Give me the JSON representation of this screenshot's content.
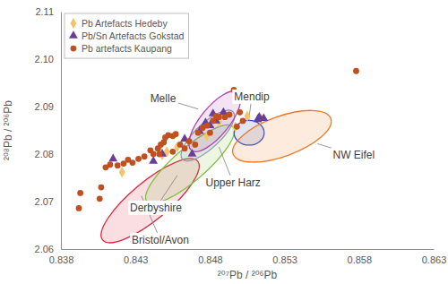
{
  "chart_data": {
    "type": "scatter",
    "x_label": "²⁰⁷Pb / ²⁰⁶Pb",
    "y_label": "²⁰⁸Pb / ²⁰⁶Pb",
    "xlim": [
      0.838,
      0.863
    ],
    "xticks": [
      0.838,
      0.843,
      0.848,
      0.853,
      0.858,
      0.863
    ],
    "ylim": [
      2.06,
      2.11
    ],
    "yticks": [
      2.06,
      2.07,
      2.08,
      2.09,
      {
        "value": 2.1,
        "label": "2.10"
      },
      2.11
    ],
    "grid": false,
    "legend": "upper left",
    "regions": [
      {
        "name": "Bristol/Avon",
        "color": "#e0233a",
        "x": [
          0.8408,
          0.84717
        ],
        "y": [
          2.0619,
          2.0785
        ],
        "half_width": 0.004,
        "label_x": 0.84467,
        "label_y": 2.0619,
        "arrow_to": [
          0.8434,
          2.0712
        ]
      },
      {
        "name": "Derbyshire",
        "color": "#7dc242",
        "x": [
          0.84377,
          0.84955
        ],
        "y": [
          2.07,
          2.0857
        ],
        "half_width": 0.0034,
        "label_x": 0.84437,
        "label_y": 2.0687,
        "arrow_to": [
          0.8458,
          2.0755
        ]
      },
      {
        "name": "Upper Harz",
        "color": "#8c9bb0",
        "x": [
          0.84615,
          0.84955
        ],
        "y": [
          2.0789,
          2.0889
        ],
        "half_width": 0.0026,
        "label_x": 0.84955,
        "label_y": 2.074,
        "arrow_to": [
          0.8486,
          2.0815
        ]
      },
      {
        "name": "Melle",
        "color": "#b040b0",
        "x": [
          0.84675,
          0.8499
        ],
        "y": [
          2.0808,
          2.093
        ],
        "half_width": 0.003,
        "label_x": 0.84485,
        "label_y": 2.0917,
        "arrow_to": [
          0.8472,
          2.0895
        ]
      },
      {
        "name": "Mendip",
        "color": "#3050d0",
        "x": [
          0.84961,
          0.85163
        ],
        "y": [
          2.0845,
          2.0845
        ],
        "half_width": 0.0026,
        "label_x": 0.8508,
        "label_y": 2.0921,
        "arrow_to": [
          0.8506,
          2.0872
        ]
      },
      {
        "name": "NW Eifel",
        "color": "#f07820",
        "x": [
          0.84955,
          0.8561
        ],
        "y": [
          2.08,
          2.0875
        ],
        "half_width": 0.0042,
        "label_x": 0.85764,
        "label_y": 2.0798,
        "arrow_to": [
          0.8552,
          2.0822
        ]
      }
    ],
    "series": [
      {
        "name": "Pb Artefacts Hedeby",
        "color": "#f5c46a",
        "marker": "diamond",
        "x": [
          0.8421,
          0.8446,
          0.8451,
          0.8458,
          0.8478,
          0.8486,
          0.8497,
          0.8505,
          0.8514,
          0.8448
        ],
        "values": [
          2.0762,
          2.081,
          2.0805,
          2.0815,
          2.0838,
          2.0868,
          2.0857,
          2.088,
          2.0875,
          2.0798
        ]
      },
      {
        "name": "Pb/Sn Artefacts Gokstad",
        "color": "#6a3d9a",
        "marker": "triangle",
        "x": [
          0.8415,
          0.8442,
          0.8448,
          0.8463,
          0.8468,
          0.8473,
          0.8477,
          0.848,
          0.8482,
          0.8484,
          0.8489,
          0.8512,
          0.8516,
          0.8513
        ],
        "values": [
          2.079,
          2.0785,
          2.08,
          2.0832,
          2.08,
          2.0848,
          2.0866,
          2.086,
          2.0885,
          2.087,
          2.0888,
          2.0873,
          2.0875,
          2.0878
        ]
      },
      {
        "name": "Pb artefacts Kaupang",
        "color": "#c0501f",
        "marker": "circle",
        "x": [
          0.8392,
          0.8393,
          0.8406,
          0.8407,
          0.841,
          0.8413,
          0.8418,
          0.8422,
          0.8425,
          0.8428,
          0.8432,
          0.8436,
          0.844,
          0.8442,
          0.8445,
          0.8447,
          0.8449,
          0.845,
          0.8452,
          0.8455,
          0.8457,
          0.846,
          0.8463,
          0.8466,
          0.847,
          0.8472,
          0.8475,
          0.8478,
          0.848,
          0.8482,
          0.8484,
          0.8486,
          0.849,
          0.8493,
          0.8496,
          0.8498,
          0.85,
          0.8502,
          0.8578,
          0.8446,
          0.8455
        ],
        "values": [
          2.0686,
          2.0718,
          2.0706,
          2.073,
          2.0772,
          2.0778,
          2.0776,
          2.078,
          2.0788,
          2.0782,
          2.079,
          2.0795,
          2.0808,
          2.08,
          2.0812,
          2.082,
          2.0825,
          2.0835,
          2.084,
          2.0838,
          2.0842,
          2.082,
          2.0812,
          2.0827,
          2.082,
          2.0845,
          2.0855,
          2.086,
          2.0845,
          2.087,
          2.088,
          2.0878,
          2.0878,
          2.0883,
          2.0935,
          2.0858,
          2.0888,
          2.087,
          2.0975,
          2.08,
          2.0805
        ]
      }
    ]
  }
}
